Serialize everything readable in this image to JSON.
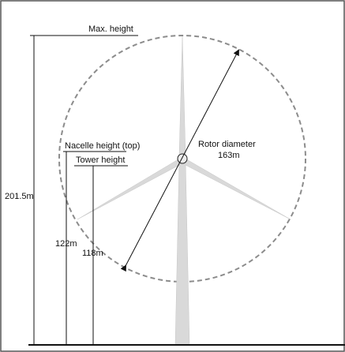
{
  "labels": {
    "max_height": "Max. height",
    "nacelle_height": "Nacelle height (top)",
    "tower_height": "Tower height",
    "rotor_diameter": "Rotor diameter",
    "rotor_diameter_value": "163m",
    "total_height_value": "201.5m",
    "nacelle_height_value": "122m",
    "tower_height_value": "118m"
  },
  "colors": {
    "blade_fill": "#d9d9d9",
    "tower_fill": "#d9d9d9",
    "rotor_circle": "#8c8c8c",
    "lines": "#111111",
    "border": "#555555"
  }
}
